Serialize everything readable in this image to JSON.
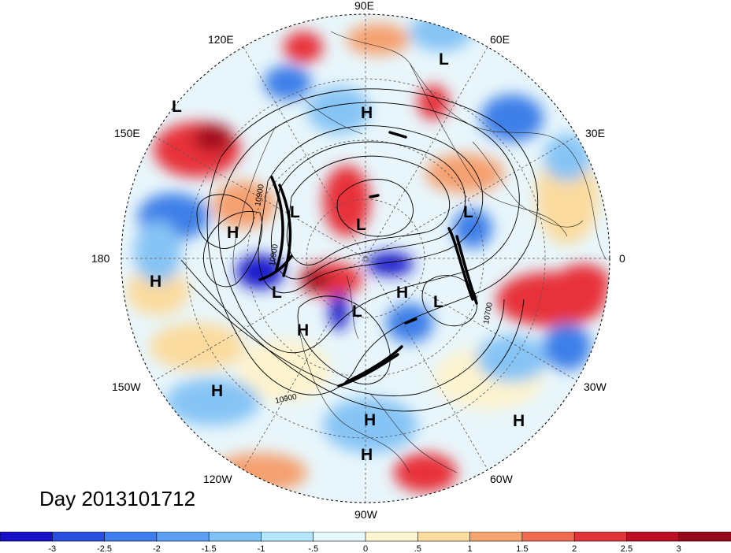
{
  "map": {
    "projection": "north-polar-stereographic",
    "longitude_labels": [
      "90E",
      "60E",
      "30E",
      "0",
      "30W",
      "60W",
      "90W",
      "120W",
      "150W",
      "180",
      "150E",
      "120E"
    ],
    "contour_labels": [
      "10900",
      "10900",
      "10700",
      "10900"
    ],
    "pressure_centers": [
      {
        "label": "L",
        "lon": "near 45E"
      },
      {
        "label": "L",
        "lon": "near 135E"
      },
      {
        "label": "H",
        "lon": "near 90E"
      },
      {
        "label": "H",
        "lon": "near 170E"
      },
      {
        "label": "H",
        "lon": "near 180"
      },
      {
        "label": "L",
        "lon": "near 160W"
      },
      {
        "label": "L",
        "lon": "near 150W"
      },
      {
        "label": "L",
        "lon": "near 135E"
      },
      {
        "label": "L",
        "lon": "near 20E"
      },
      {
        "label": "H",
        "lon": "near 100W"
      },
      {
        "label": "L",
        "lon": "near 90W"
      },
      {
        "label": "H",
        "lon": "near 60W"
      },
      {
        "label": "L",
        "lon": "near 20W"
      },
      {
        "label": "H",
        "lon": "near 150W"
      },
      {
        "label": "H",
        "lon": "near 90W"
      },
      {
        "label": "H",
        "lon": "near 40W"
      },
      {
        "label": "H",
        "lon": "near 90W"
      }
    ],
    "colors": {
      "deep_blue": "#1a1acc",
      "blue": "#3d7fe8",
      "light_blue": "#86c4f5",
      "pale_blue": "#d8f2fb",
      "pale_yellow": "#fdf3cf",
      "orange": "#f5a070",
      "red": "#e8323a",
      "dark_red": "#a30a1e"
    }
  },
  "title": "Day 2013101712",
  "colorbar": {
    "tick_labels": [
      "-3",
      "-2.5",
      "-2",
      "-1.5",
      "-1",
      "-.5",
      "0",
      ".5",
      "1",
      "1.5",
      "2",
      "2.5",
      "3"
    ],
    "colors": [
      "#1610c8",
      "#2a4fe0",
      "#3f7ef0",
      "#5b9ff5",
      "#7fc2f6",
      "#b4e6fb",
      "#e4f7fb",
      "#fdf5d0",
      "#fbdb9e",
      "#f5a670",
      "#ef6b50",
      "#e0333a",
      "#bc0f25",
      "#98081c"
    ]
  }
}
